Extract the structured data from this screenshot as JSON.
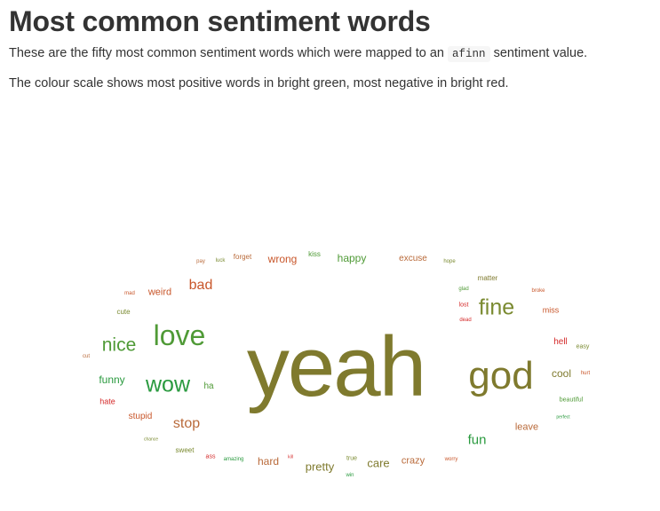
{
  "heading": "Most common sentiment words",
  "intro": {
    "before_code": "These are the fifty most common sentiment words which were mapped to an ",
    "code": "afinn",
    "after_code": " sentiment value."
  },
  "colour_note": "The colour scale shows most positive words in bright green, most negative in bright red.",
  "word_cloud": {
    "words": [
      {
        "text": "yeah",
        "color": "#7f7a2e"
      },
      {
        "text": "god",
        "color": "#7f7a2e"
      },
      {
        "text": "love",
        "color": "#4f9a36"
      },
      {
        "text": "wow",
        "color": "#2a9a3f"
      },
      {
        "text": "nice",
        "color": "#4f9a36"
      },
      {
        "text": "fine",
        "color": "#7a8a30"
      },
      {
        "text": "bad",
        "color": "#c8562a"
      },
      {
        "text": "stop",
        "color": "#b96a3a"
      },
      {
        "text": "fun",
        "color": "#2a9a3f"
      },
      {
        "text": "wrong",
        "color": "#c8562a"
      },
      {
        "text": "happy",
        "color": "#4f9a36"
      },
      {
        "text": "weird",
        "color": "#c8562a"
      },
      {
        "text": "funny",
        "color": "#2a9a3f"
      },
      {
        "text": "pretty",
        "color": "#7f7a2e"
      },
      {
        "text": "care",
        "color": "#7f7a2e"
      },
      {
        "text": "hard",
        "color": "#b96a3a"
      },
      {
        "text": "crazy",
        "color": "#b96a3a"
      },
      {
        "text": "cool",
        "color": "#7f7a2e"
      },
      {
        "text": "leave",
        "color": "#b96a3a"
      },
      {
        "text": "excuse",
        "color": "#b96a3a"
      },
      {
        "text": "stupid",
        "color": "#c8562a"
      },
      {
        "text": "hell",
        "color": "#d42a2a"
      },
      {
        "text": "ha",
        "color": "#4f9a36"
      },
      {
        "text": "hate",
        "color": "#d42a2a"
      },
      {
        "text": "miss",
        "color": "#c8562a"
      },
      {
        "text": "matter",
        "color": "#7f7a2e"
      },
      {
        "text": "cute",
        "color": "#7a8a30"
      },
      {
        "text": "kiss",
        "color": "#4f9a36"
      },
      {
        "text": "forget",
        "color": "#b96a3a"
      },
      {
        "text": "sweet",
        "color": "#7a8a30"
      },
      {
        "text": "beautiful",
        "color": "#4f9a36"
      },
      {
        "text": "lost",
        "color": "#d42a2a"
      },
      {
        "text": "easy",
        "color": "#7a8a30"
      },
      {
        "text": "true",
        "color": "#7a8a30"
      },
      {
        "text": "hope",
        "color": "#7a8a30"
      },
      {
        "text": "cut",
        "color": "#b96a3a"
      },
      {
        "text": "ass",
        "color": "#d42a2a"
      },
      {
        "text": "amazing",
        "color": "#2a9a3f"
      },
      {
        "text": "worry",
        "color": "#c8562a"
      },
      {
        "text": "win",
        "color": "#2a9a3f"
      },
      {
        "text": "pay",
        "color": "#b96a3a"
      },
      {
        "text": "luck",
        "color": "#7a8a30"
      },
      {
        "text": "mad",
        "color": "#c8562a"
      },
      {
        "text": "glad",
        "color": "#4f9a36"
      },
      {
        "text": "broke",
        "color": "#c8562a"
      },
      {
        "text": "dead",
        "color": "#d42a2a"
      },
      {
        "text": "hurt",
        "color": "#c8562a"
      },
      {
        "text": "perfect",
        "color": "#2a9a3f"
      },
      {
        "text": "chance",
        "color": "#7a8a30"
      },
      {
        "text": "kill",
        "color": "#d42a2a"
      }
    ]
  }
}
